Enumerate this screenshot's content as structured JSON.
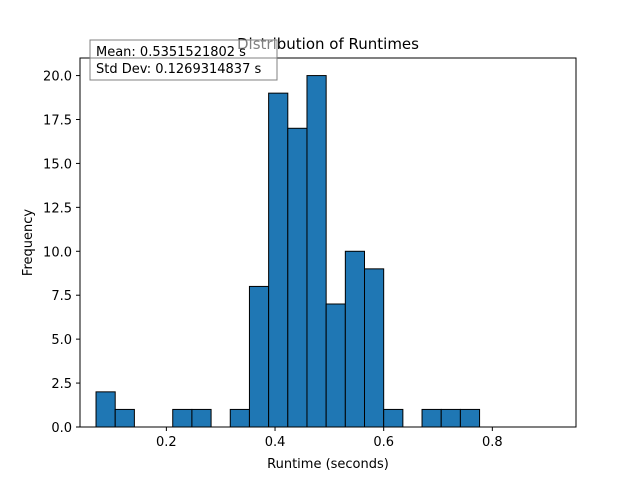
{
  "chart_data": {
    "type": "histogram",
    "title": "Distribution of Runtimes",
    "xlabel": "Runtime (seconds)",
    "ylabel": "Frequency",
    "bar_color": "#1f77b4",
    "edge_color": "#000000",
    "xlim": [
      0.041,
      0.954
    ],
    "ylim": [
      0,
      21
    ],
    "bin_start": 0.0705,
    "bin_width": 0.0353,
    "counts": [
      2,
      1,
      0,
      0,
      1,
      1,
      0,
      1,
      8,
      19,
      17,
      20,
      7,
      10,
      9,
      1,
      0,
      1,
      1,
      1
    ],
    "xticks": [
      {
        "value": 0.2,
        "label": "0.2"
      },
      {
        "value": 0.4,
        "label": "0.4"
      },
      {
        "value": 0.6,
        "label": "0.6"
      },
      {
        "value": 0.8,
        "label": "0.8"
      }
    ],
    "yticks": [
      {
        "value": 0.0,
        "label": "0.0"
      },
      {
        "value": 2.5,
        "label": "2.5"
      },
      {
        "value": 5.0,
        "label": "5.0"
      },
      {
        "value": 7.5,
        "label": "7.5"
      },
      {
        "value": 10.0,
        "label": "10.0"
      },
      {
        "value": 12.5,
        "label": "12.5"
      },
      {
        "value": 15.0,
        "label": "15.0"
      },
      {
        "value": 17.5,
        "label": "17.5"
      },
      {
        "value": 20.0,
        "label": "20.0"
      }
    ],
    "stats_box": {
      "mean_text": "Mean: 0.5351521802 s",
      "std_text": "Std Dev: 0.1269314837 s"
    }
  }
}
